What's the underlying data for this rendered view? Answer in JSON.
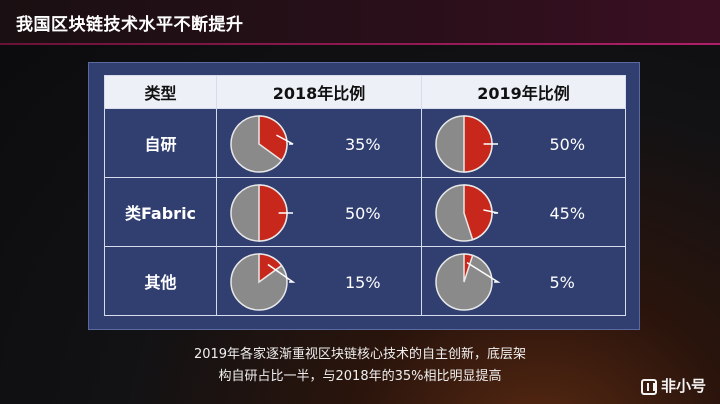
{
  "header": {
    "title": "我国区块链技术水平不断提升"
  },
  "table": {
    "headers": [
      "类型",
      "2018年比例",
      "2019年比例"
    ]
  },
  "chart_data": {
    "type": "pie",
    "categories": [
      "自研",
      "类Fabric",
      "其他"
    ],
    "series": [
      {
        "name": "2018年比例",
        "values": [
          35,
          50,
          15
        ],
        "labels": [
          "35%",
          "50%",
          "15%"
        ]
      },
      {
        "name": "2019年比例",
        "values": [
          50,
          45,
          5
        ],
        "labels": [
          "50%",
          "45%",
          "5%"
        ]
      }
    ],
    "colors": {
      "slice": "#c7281b",
      "rest": "#8a8a8a"
    }
  },
  "caption": {
    "line1": "2019年各家逐渐重视区块链核心技术的自主创新，底层架",
    "line2": "构自研占比一半，与2018年的35%相比明显提高"
  },
  "watermark": {
    "text": "非小号",
    "icon": "feixiaohao-logo-icon"
  }
}
